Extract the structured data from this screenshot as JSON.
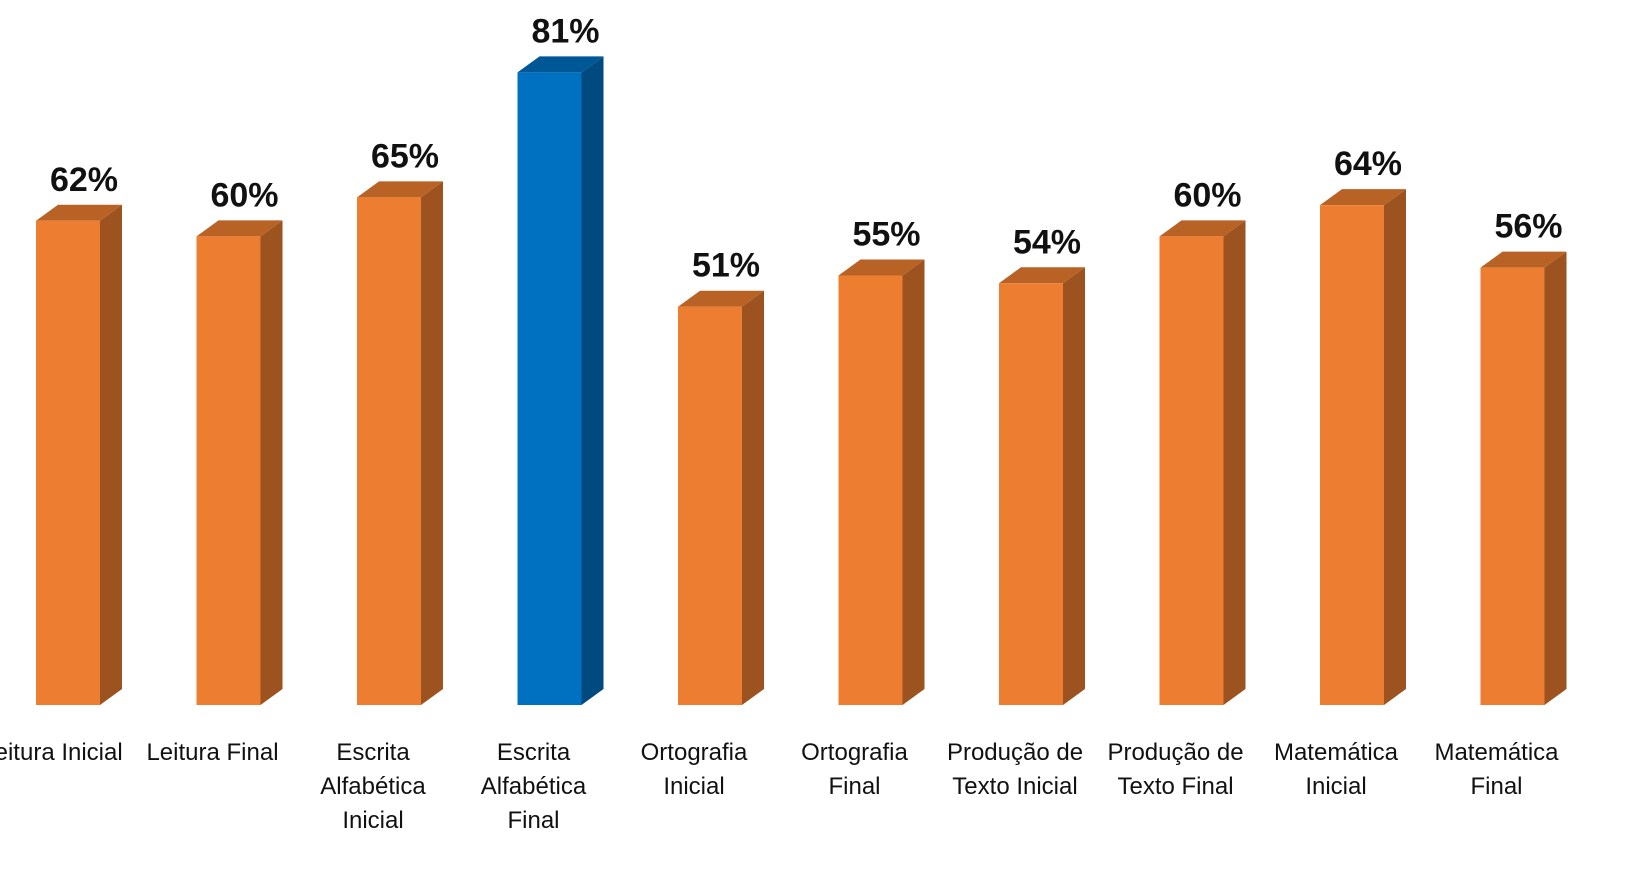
{
  "chart_data": {
    "type": "bar3d",
    "categories": [
      "Leitura Inicial",
      "Leitura Final",
      "Escrita Alfabética Inicial",
      "Escrita Alfabética Final",
      "Ortografia Inicial",
      "Ortografia Final",
      "Produção de Texto Inicial",
      "Produção de Texto Final",
      "Matemática Inicial",
      "Matemática Final"
    ],
    "values": [
      62,
      60,
      65,
      81,
      51,
      55,
      54,
      60,
      64,
      56
    ],
    "value_labels": [
      "62%",
      "60%",
      "65%",
      "81%",
      "51%",
      "55%",
      "54%",
      "60%",
      "64%",
      "56%"
    ],
    "colors": [
      "#ED7D31",
      "#ED7D31",
      "#ED7D31",
      "#0070C0",
      "#ED7D31",
      "#ED7D31",
      "#ED7D31",
      "#ED7D31",
      "#ED7D31",
      "#ED7D31"
    ]
  }
}
